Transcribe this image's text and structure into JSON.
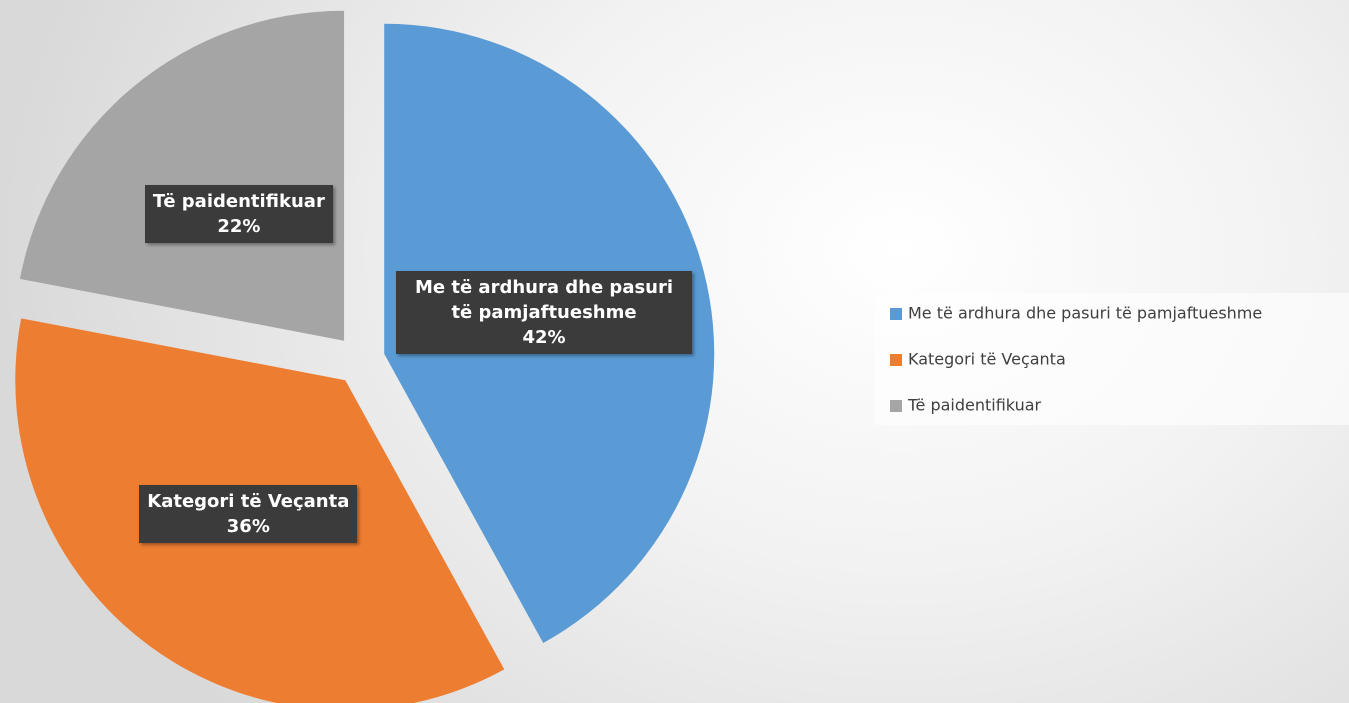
{
  "chart_data": {
    "type": "pie",
    "categories": [
      "Me të ardhura dhe pasuri të pamjaftueshme",
      "Kategori të Veçanta",
      "Të paidentifikuar"
    ],
    "values": [
      42,
      36,
      22
    ],
    "value_labels": [
      "42%",
      "36%",
      "22%"
    ],
    "colors": [
      "#5b9bd5",
      "#ed7d31",
      "#a5a5a5"
    ],
    "legend": "right"
  }
}
